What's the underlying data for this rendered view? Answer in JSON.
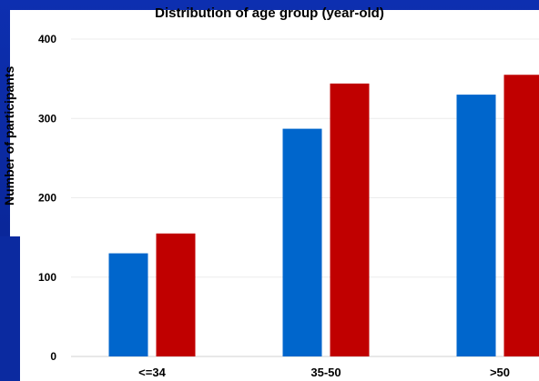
{
  "chart_data": {
    "type": "bar",
    "title": "Distribution of age group (year-old)",
    "xlabel": "",
    "ylabel": "Number of participants",
    "categories": [
      "<=34",
      "35-50",
      ">50"
    ],
    "series": [
      {
        "values": [
          130,
          287,
          330
        ],
        "color": "#0066cc"
      },
      {
        "values": [
          155,
          344,
          355
        ],
        "color": "#c00000"
      }
    ],
    "ylim": [
      0,
      400
    ],
    "yticks": [
      0,
      100,
      200,
      300,
      400
    ],
    "grid": true
  }
}
